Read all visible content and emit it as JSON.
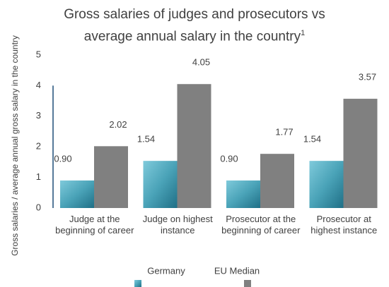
{
  "chart_data": {
    "type": "bar",
    "title": "Gross salaries of judges and prosecutors vs average annual salary in the country",
    "title_footnote": "1",
    "y_label": "Gross salaries / average annual gross salary in the country",
    "categories": [
      "Judge at the beginning of career",
      "Judge on highest instance",
      "Prosecutor at the beginning of career",
      "Prosecutor at highest instance"
    ],
    "series": [
      {
        "name": "Germany",
        "color": "#4aa3b8",
        "values": [
          0.9,
          1.54,
          0.9,
          1.54
        ],
        "value_labels": [
          "0.90",
          "1.54",
          "0.90",
          "1.54"
        ]
      },
      {
        "name": "EU Median",
        "color": "#808080",
        "values": [
          2.02,
          4.05,
          1.77,
          3.57
        ],
        "value_labels": [
          "2.02",
          "4.05",
          "1.77",
          "3.57"
        ]
      }
    ],
    "ylim": [
      0,
      5
    ],
    "yticks": [
      0,
      1,
      2,
      3,
      4,
      5
    ],
    "grid": false
  }
}
